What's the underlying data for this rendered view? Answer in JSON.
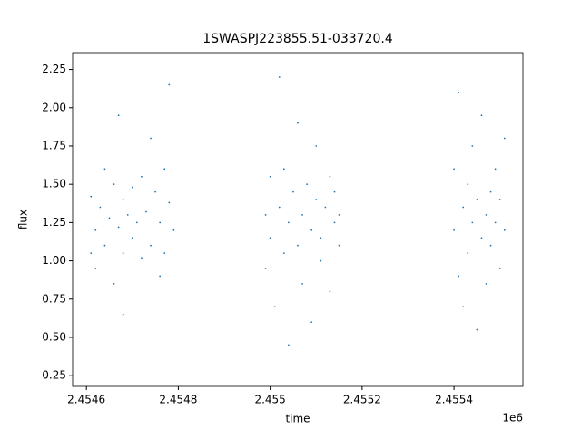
{
  "chart_data": {
    "type": "scatter",
    "title": "1SWASPJ223855.51-033720.4",
    "x_label": "time",
    "y_label": "flux",
    "x_offset_label": "1e6",
    "color": "#1f77b4",
    "x": [
      2.45461,
      2.45461,
      2.45462,
      2.45462,
      2.45463,
      2.45464,
      2.45464,
      2.45465,
      2.45466,
      2.45466,
      2.45467,
      2.45467,
      2.45468,
      2.45468,
      2.45468,
      2.45469,
      2.4547,
      2.4547,
      2.45471,
      2.45472,
      2.45472,
      2.45473,
      2.45474,
      2.45474,
      2.45475,
      2.45476,
      2.45476,
      2.45477,
      2.45477,
      2.45478,
      2.45478,
      2.45479,
      2.45499,
      2.45499,
      2.455,
      2.455,
      2.45501,
      2.45502,
      2.45502,
      2.45503,
      2.45503,
      2.45504,
      2.45504,
      2.45505,
      2.45506,
      2.45506,
      2.45507,
      2.45507,
      2.45508,
      2.45509,
      2.45509,
      2.4551,
      2.4551,
      2.45511,
      2.45511,
      2.45512,
      2.45513,
      2.45513,
      2.45514,
      2.45514,
      2.45515,
      2.45515,
      2.4554,
      2.4554,
      2.45541,
      2.45541,
      2.45542,
      2.45542,
      2.45543,
      2.45543,
      2.45544,
      2.45544,
      2.45545,
      2.45545,
      2.45546,
      2.45546,
      2.45547,
      2.45547,
      2.45548,
      2.45548,
      2.45549,
      2.45549,
      2.4555,
      2.4555,
      2.45551,
      2.45551
    ],
    "y": [
      1.05,
      1.42,
      1.2,
      0.95,
      1.35,
      1.6,
      1.1,
      1.28,
      0.85,
      1.5,
      1.22,
      1.95,
      1.05,
      1.4,
      0.65,
      1.3,
      1.15,
      1.48,
      1.25,
      1.02,
      1.55,
      1.32,
      1.1,
      1.8,
      1.45,
      0.9,
      1.25,
      1.6,
      1.05,
      1.38,
      2.15,
      1.2,
      1.3,
      0.95,
      1.55,
      1.15,
      0.7,
      1.35,
      2.2,
      1.05,
      1.6,
      1.25,
      0.45,
      1.45,
      1.1,
      1.9,
      1.3,
      0.85,
      1.5,
      1.2,
      0.6,
      1.4,
      1.75,
      1.15,
      1.0,
      1.35,
      1.55,
      0.8,
      1.25,
      1.45,
      1.1,
      1.3,
      1.2,
      1.6,
      0.9,
      2.1,
      1.35,
      0.7,
      1.5,
      1.05,
      1.25,
      1.75,
      0.55,
      1.4,
      1.15,
      1.95,
      1.3,
      0.85,
      1.45,
      1.1,
      1.25,
      1.6,
      0.95,
      1.4,
      1.2,
      1.8
    ],
    "xlim": [
      2.45457,
      2.45555
    ],
    "ylim": [
      0.18,
      2.36
    ],
    "xticks": [
      2.4546,
      2.4548,
      2.455,
      2.4552,
      2.4554
    ],
    "yticks": [
      0.25,
      {
        "value": 0.5,
        "label": "0.50"
      },
      0.75,
      {
        "value": 1,
        "label": "1.00"
      },
      1.25,
      {
        "value": 1.5,
        "label": "1.50"
      },
      1.75,
      {
        "value": 2,
        "label": "2.00"
      },
      2.25
    ]
  }
}
